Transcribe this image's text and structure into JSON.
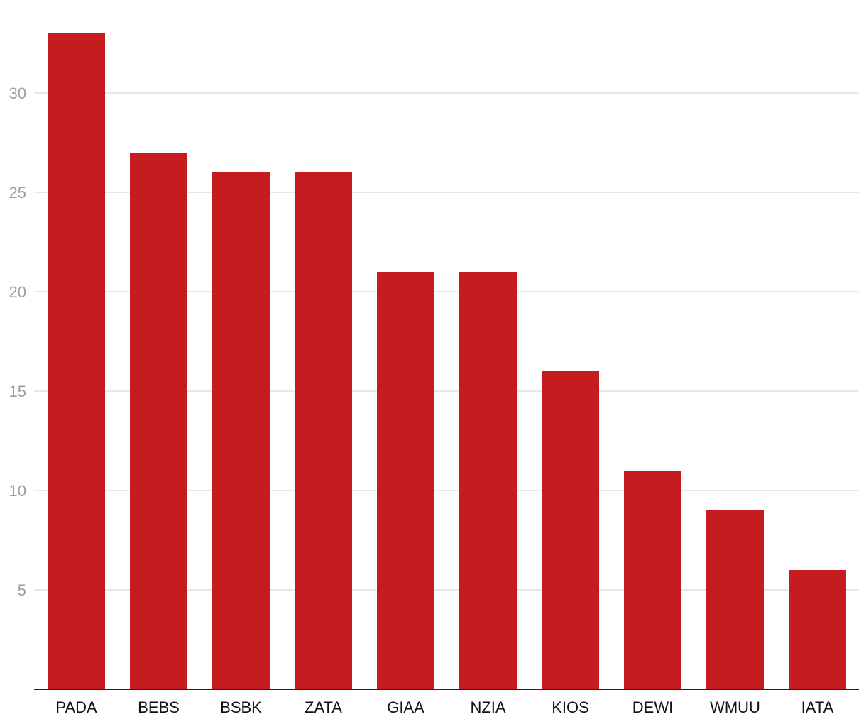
{
  "chart_data": {
    "type": "bar",
    "title": "",
    "xlabel": "",
    "ylabel": "",
    "categories": [
      "PADA",
      "BEBS",
      "BSBK",
      "ZATA",
      "GIAA",
      "NZIA",
      "KIOS",
      "DEWI",
      "WMUU",
      "IATA"
    ],
    "values": [
      33,
      27,
      26,
      26,
      21,
      21,
      16,
      11,
      9,
      6
    ],
    "ylim": [
      0,
      34.5
    ],
    "yticks": [
      5,
      10,
      15,
      20,
      25,
      30
    ],
    "grid": true,
    "legend": "none",
    "colors": {
      "bar": "#c61c1f",
      "grid": "#e0e0e0",
      "axis": "#222222",
      "y_tick_text": "#9e9e9e",
      "x_tick_text": "#111111"
    }
  }
}
